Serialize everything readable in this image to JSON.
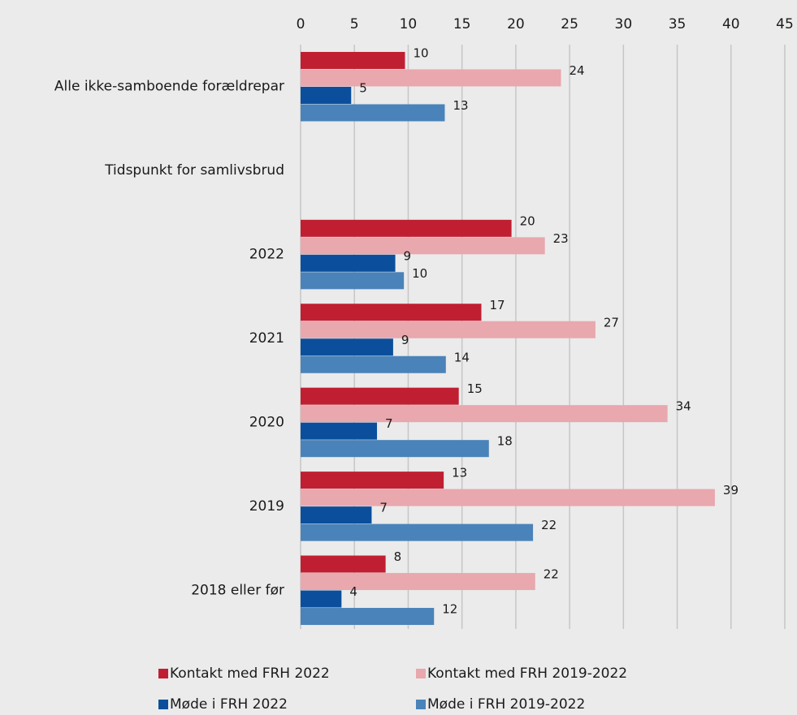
{
  "chart_data": {
    "type": "bar",
    "orientation": "horizontal",
    "categories": [
      "Alle ikke-samboende forældrepar",
      "Tidspunkt for samlivsbrud",
      "2022",
      "2021",
      "2020",
      "2019",
      "2018 eller før"
    ],
    "series": [
      {
        "name": "Kontakt med FRH 2022",
        "color": "#c01f32",
        "values": [
          9.7,
          null,
          19.6,
          16.8,
          14.7,
          13.3,
          7.9
        ],
        "value_labels": [
          "10",
          null,
          "20",
          "17",
          "15",
          "13",
          "8"
        ]
      },
      {
        "name": "Kontakt med FRH 2019-2022",
        "color": "#e9a7ae",
        "values": [
          24.2,
          null,
          22.7,
          27.4,
          34.1,
          38.5,
          21.8
        ],
        "value_labels": [
          "24",
          null,
          "23",
          "27",
          "34",
          "39",
          "22"
        ]
      },
      {
        "name": "Møde i FRH 2022",
        "color": "#0b4f9c",
        "values": [
          4.7,
          null,
          8.8,
          8.6,
          7.1,
          6.6,
          3.8
        ],
        "value_labels": [
          "5",
          null,
          "9",
          "9",
          "7",
          "7",
          "4"
        ]
      },
      {
        "name": "Møde i FRH 2019-2022",
        "color": "#4a83b9",
        "values": [
          13.4,
          null,
          9.6,
          13.5,
          17.5,
          21.6,
          12.4
        ],
        "value_labels": [
          "13",
          null,
          "10",
          "14",
          "18",
          "22",
          "12"
        ]
      }
    ],
    "xlim": [
      0,
      45
    ],
    "xticks": [
      0,
      5,
      10,
      15,
      20,
      25,
      30,
      35,
      40,
      45
    ],
    "grid": true
  }
}
